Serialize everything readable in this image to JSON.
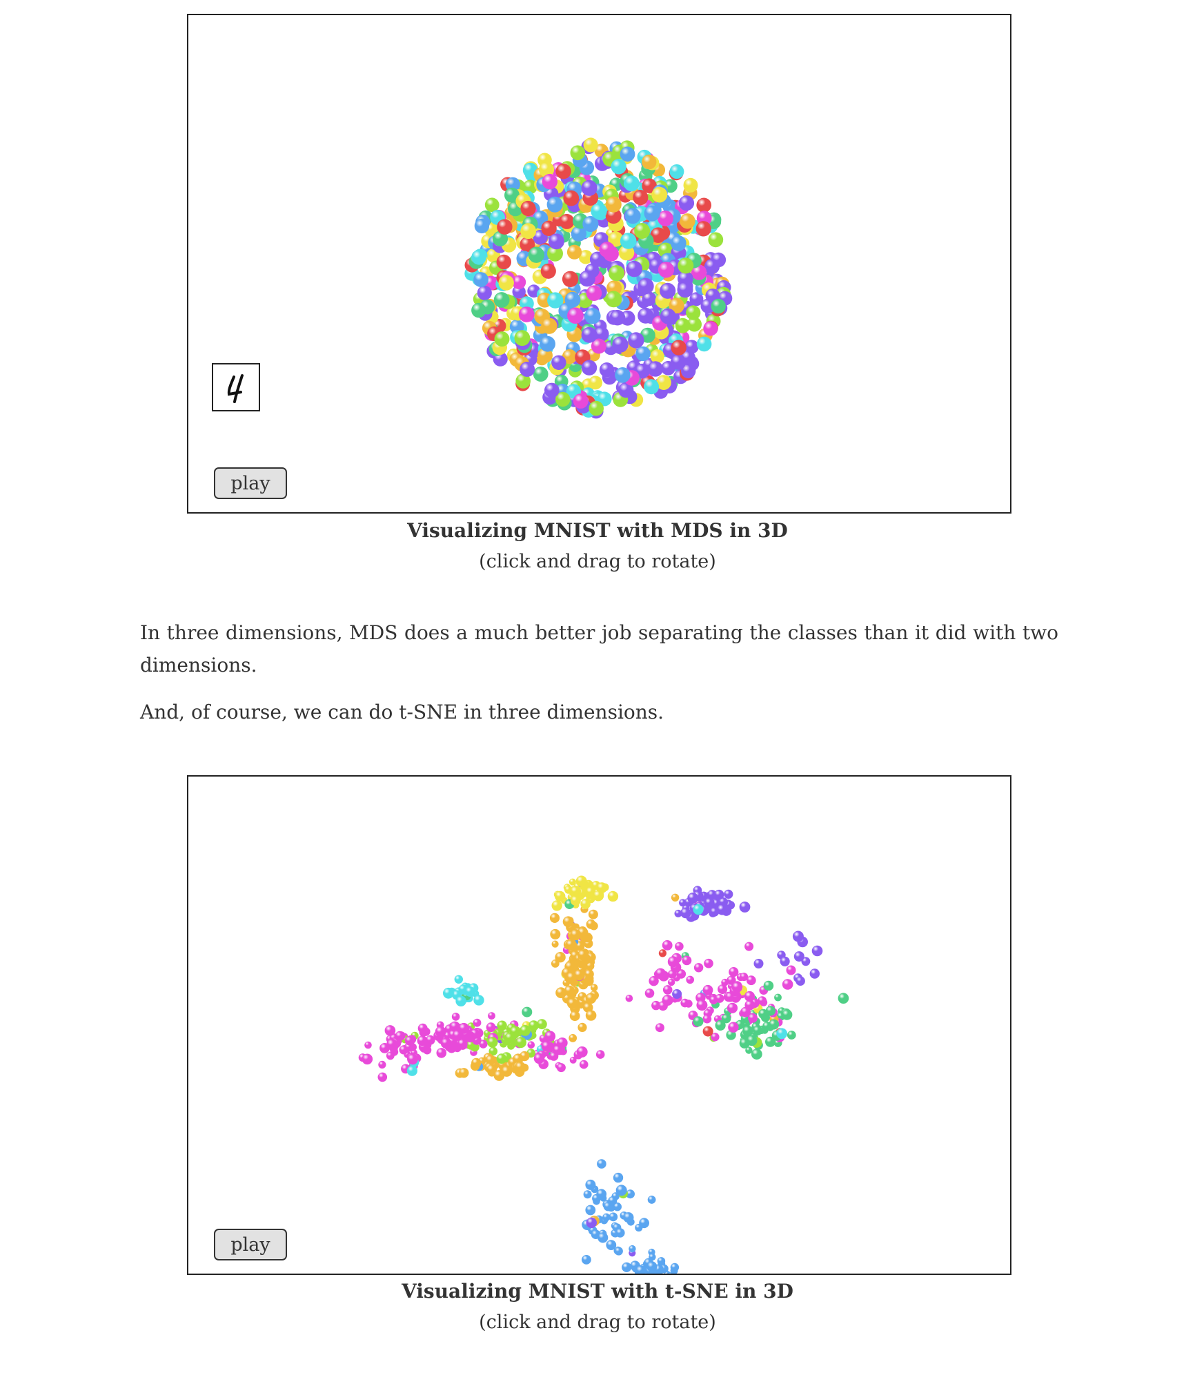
{
  "figures": [
    {
      "id": "mds",
      "caption_title": "Visualizing MNIST with MDS in 3D",
      "caption_subtitle": "(click and drag to rotate)",
      "play_label": "play",
      "thumbnail_digit": "4"
    },
    {
      "id": "tsne",
      "caption_title": "Visualizing MNIST with t-SNE in 3D",
      "caption_subtitle": "(click and drag to rotate)",
      "play_label": "play"
    }
  ],
  "paragraphs": [
    "In three dimensions, MDS does a much better job separating the classes than it did with two dimensions.",
    "And, of course, we can do t-SNE in three dimensions."
  ],
  "colors": {
    "palette": [
      "#e84a4a",
      "#f0e545",
      "#4fcf86",
      "#4fe0e8",
      "#f2b83a",
      "#8a5cf0",
      "#e84ad9",
      "#5aa5f0",
      "#9be23c"
    ]
  }
}
